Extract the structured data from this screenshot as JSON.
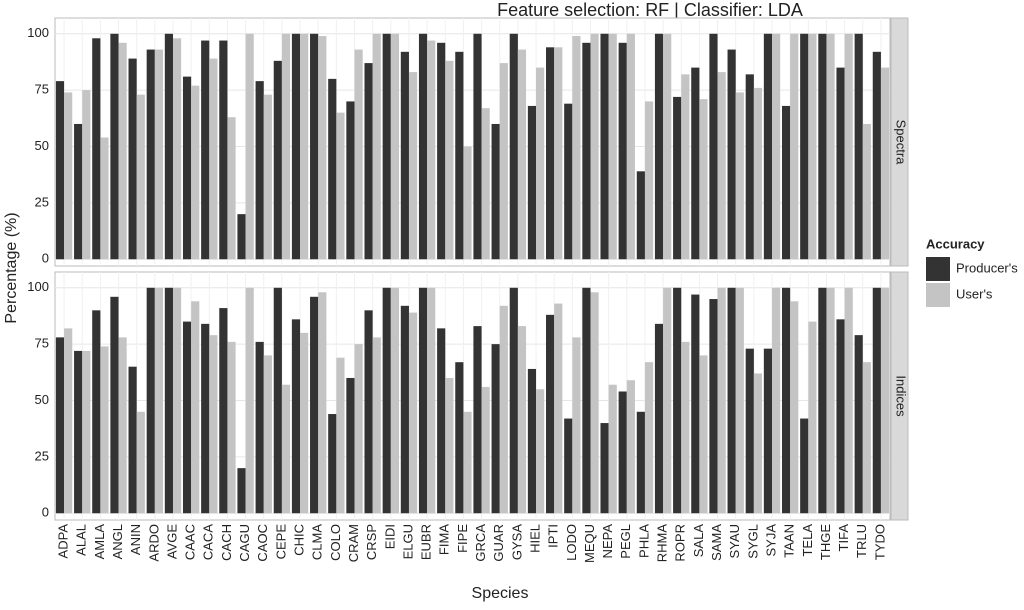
{
  "chart_data": {
    "type": "bar",
    "title": "Feature selection: RF | Classifier: LDA",
    "x_label": "Species",
    "y_label": "Percentage (%)",
    "legend_title": "Accuracy",
    "categories": [
      "ADPA",
      "ALAL",
      "AMLA",
      "ANGL",
      "ANIN",
      "ARDO",
      "AVGE",
      "CAAC",
      "CACA",
      "CACH",
      "CAGU",
      "CAOC",
      "CEPE",
      "CHIC",
      "CLMA",
      "COLO",
      "CRAM",
      "CRSP",
      "EIDI",
      "ELGU",
      "EUBR",
      "FIMA",
      "FIPE",
      "GRCA",
      "GUAR",
      "GYSA",
      "HIEL",
      "IPTI",
      "LODO",
      "MEQU",
      "NEPA",
      "PEGL",
      "PHLA",
      "RHMA",
      "ROPR",
      "SALA",
      "SAMA",
      "SYAU",
      "SYGL",
      "SYJA",
      "TAAN",
      "TELA",
      "THGE",
      "TIFA",
      "TRLU",
      "TYDO"
    ],
    "ylim": [
      -3,
      107
    ],
    "yticks": [
      0,
      25,
      50,
      75,
      100
    ],
    "grid": true,
    "legend_position": "right",
    "facets": [
      {
        "label": "Spectra",
        "series": [
          {
            "name": "Producer's",
            "color": "#333333",
            "values": [
              79,
              60,
              98,
              100,
              89,
              93,
              100,
              81,
              97,
              97,
              20,
              79,
              88,
              100,
              100,
              80,
              70,
              87,
              100,
              92,
              100,
              96,
              92,
              100,
              60,
              100,
              68,
              94,
              69,
              96,
              100,
              96,
              39,
              100,
              72,
              85,
              100,
              93,
              82,
              100,
              68,
              100,
              100,
              85,
              100,
              92
            ]
          },
          {
            "name": "User's",
            "color": "#c4c4c4",
            "values": [
              74,
              75,
              54,
              96,
              73,
              93,
              98,
              77,
              89,
              63,
              100,
              73,
              100,
              100,
              99,
              65,
              93,
              100,
              100,
              83,
              97,
              88,
              50,
              67,
              87,
              93,
              85,
              94,
              99,
              100,
              100,
              100,
              70,
              100,
              82,
              71,
              83,
              74,
              76,
              100,
              100,
              100,
              100,
              100,
              60,
              85
            ]
          }
        ]
      },
      {
        "label": "Indices",
        "series": [
          {
            "name": "Producer's",
            "color": "#333333",
            "values": [
              78,
              72,
              90,
              96,
              65,
              100,
              100,
              85,
              84,
              91,
              20,
              76,
              100,
              86,
              96,
              44,
              60,
              90,
              100,
              92,
              100,
              82,
              67,
              83,
              75,
              100,
              64,
              88,
              42,
              100,
              40,
              54,
              45,
              84,
              100,
              97,
              95,
              100,
              73,
              73,
              100,
              42,
              100,
              86,
              79,
              100
            ]
          },
          {
            "name": "User's",
            "color": "#c4c4c4",
            "values": [
              82,
              72,
              74,
              78,
              45,
              100,
              100,
              94,
              79,
              76,
              100,
              70,
              57,
              80,
              98,
              69,
              75,
              78,
              100,
              89,
              100,
              60,
              45,
              56,
              92,
              83,
              55,
              93,
              78,
              98,
              57,
              59,
              67,
              100,
              76,
              70,
              100,
              100,
              62,
              100,
              94,
              85,
              100,
              100,
              67,
              100
            ]
          }
        ]
      }
    ]
  }
}
